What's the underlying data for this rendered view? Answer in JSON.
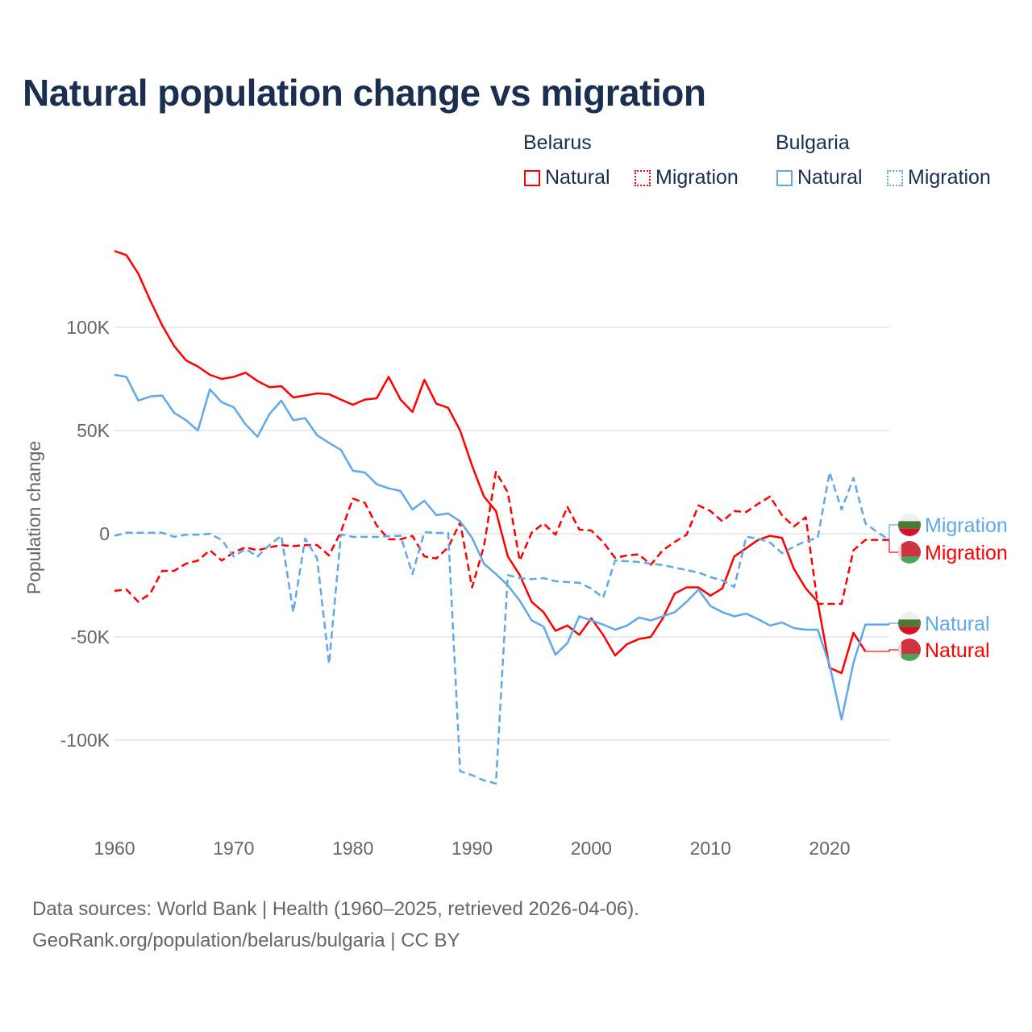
{
  "title": "Natural population change vs migration",
  "legend": {
    "groups": [
      {
        "name": "Belarus",
        "items": [
          {
            "label": "Natural",
            "style": "solid",
            "color": "#ff0000"
          },
          {
            "label": "Migration",
            "style": "dotted",
            "color": "#ff0000"
          }
        ]
      },
      {
        "name": "Bulgaria",
        "items": [
          {
            "label": "Natural",
            "style": "solid",
            "color": "#5ea8ec"
          },
          {
            "label": "Migration",
            "style": "dotted",
            "color": "#5ea8ec"
          }
        ]
      }
    ]
  },
  "source": {
    "line1": "Data sources: World Bank | Health (1960–2025, retrieved 2026-04-06).",
    "line2": "GeoRank.org/population/belarus/bulgaria | CC BY"
  },
  "chart_data": {
    "type": "line",
    "title": "Natural population change vs migration",
    "xlabel": "",
    "ylabel": "Population change",
    "xlim": [
      1960,
      2025
    ],
    "ylim": [
      -135,
      145
    ],
    "x_ticks": [
      1960,
      1970,
      1980,
      1990,
      2000,
      2010,
      2020
    ],
    "y_ticks": [
      {
        "value": 100,
        "label": "100K"
      },
      {
        "value": 50,
        "label": "50K"
      },
      {
        "value": 0,
        "label": "0"
      },
      {
        "value": -50,
        "label": "-50K"
      },
      {
        "value": -100,
        "label": "-100K"
      }
    ],
    "grid": true,
    "units": "thousands",
    "start_year": 1960,
    "series": [
      {
        "name": "Belarus Natural",
        "end_label": "Natural",
        "country": "Belarus",
        "color": "#ff0000",
        "dash": false,
        "values": [
          137,
          135,
          126,
          113,
          101,
          91,
          84,
          81,
          77,
          75,
          76,
          78,
          74,
          71,
          71.5,
          66,
          67,
          68,
          67.6,
          65,
          62.5,
          65,
          65.6,
          76,
          65,
          59,
          74.6,
          63,
          61,
          50,
          33,
          18,
          11,
          -11,
          -20,
          -33,
          -38,
          -47,
          -44.5,
          -49,
          -41,
          -49,
          -59,
          -53.5,
          -51,
          -50,
          -41,
          -29,
          -26,
          -26,
          -30,
          -26.5,
          -11,
          -7,
          -3,
          -1,
          -2,
          -17,
          -26.5,
          -33,
          -65,
          -67.5,
          -48,
          -57
        ]
      },
      {
        "name": "Belarus Migration",
        "end_label": "Migration",
        "country": "Belarus",
        "color": "#ff0000",
        "dash": true,
        "values": [
          -27.7,
          -27,
          -33,
          -29,
          -18,
          -18,
          -14.5,
          -13,
          -8,
          -13,
          -9,
          -6.6,
          -8,
          -6.6,
          -5.5,
          -6,
          -5.5,
          -5.5,
          -10.5,
          1,
          17,
          15,
          4,
          -2.7,
          -2.7,
          -1,
          -11,
          -12,
          -6.6,
          5.5,
          -26,
          -6,
          30,
          20,
          -13,
          0.5,
          5,
          -0.5,
          13,
          2,
          1.6,
          -4,
          -11.7,
          -10.5,
          -10,
          -15,
          -8,
          -4,
          -0.5,
          13.7,
          11,
          6,
          11,
          10.5,
          14.5,
          18,
          9,
          3.5,
          8,
          -34,
          -34,
          -34,
          -8,
          -3,
          -3,
          -3
        ]
      },
      {
        "name": "Bulgaria Natural",
        "end_label": "Natural",
        "country": "Bulgaria",
        "color": "#5ea8ec",
        "dash": false,
        "values": [
          77,
          76,
          64.5,
          66.5,
          67,
          58.6,
          55,
          50,
          70,
          63.7,
          61.3,
          53,
          47,
          58,
          64.5,
          55,
          56,
          47.7,
          44,
          40.6,
          30.5,
          29.7,
          24,
          22,
          20.7,
          11.7,
          16,
          9,
          9.8,
          6,
          -2,
          -14.5,
          -19.5,
          -25,
          -32.4,
          -42,
          -45,
          -58.6,
          -53,
          -40,
          -42,
          -44,
          -46.5,
          -44.5,
          -40.6,
          -42,
          -40,
          -38,
          -33,
          -27,
          -35,
          -38,
          -40,
          -38.7,
          -41.4,
          -44.5,
          -43,
          -45.7,
          -46.5,
          -46.5,
          -63.7,
          -90,
          -62.5,
          -44,
          -44,
          -44
        ]
      },
      {
        "name": "Bulgaria Migration",
        "end_label": "Migration",
        "country": "Bulgaria",
        "color": "#5ea8ec",
        "dash": true,
        "values": [
          -1,
          0.5,
          0.5,
          0.5,
          0.5,
          -1.5,
          -0.5,
          -0.5,
          0,
          -3,
          -11,
          -7.4,
          -11,
          -5.5,
          -1,
          -38,
          -2.3,
          -12,
          -63,
          -0.4,
          -1.5,
          -1.5,
          -1.5,
          -1.2,
          -1,
          -19.5,
          0.8,
          0.4,
          0.4,
          -115,
          -117,
          -119.5,
          -121,
          -20,
          -21.5,
          -22,
          -21.5,
          -23,
          -23.4,
          -23.8,
          -26.5,
          -31,
          -13,
          -13.3,
          -13.7,
          -14.5,
          -15.2,
          -16.4,
          -17.6,
          -18.8,
          -21,
          -22.6,
          -25.8,
          -1.5,
          -2.3,
          -4.3,
          -9.4,
          -6.3,
          -3.5,
          -2,
          29.7,
          11.7,
          27,
          5,
          0.8,
          -3
        ]
      }
    ]
  }
}
